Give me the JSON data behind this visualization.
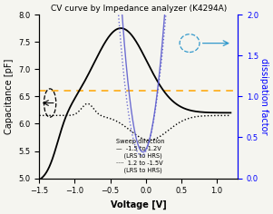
{
  "title": "CV curve by Impedance analyzer (K4294A)",
  "xlabel": "Voltage [V]",
  "ylabel_left": "Capacitance [pF]",
  "ylabel_right": "dissipation factor",
  "xlim": [
    -1.5,
    1.3
  ],
  "ylim_left": [
    5.0,
    8.0
  ],
  "ylim_right": [
    0.0,
    2.0
  ],
  "yticks_left": [
    5.0,
    5.5,
    6.0,
    6.5,
    7.0,
    7.5,
    8.0
  ],
  "yticks_right": [
    0.0,
    0.5,
    1.0,
    1.5,
    2.0
  ],
  "xticks": [
    -1.5,
    -1.0,
    -0.5,
    0.0,
    0.5,
    1.0
  ],
  "hline_y": 6.6,
  "hline_color": "#FFA500",
  "background_color": "#f5f5f0"
}
